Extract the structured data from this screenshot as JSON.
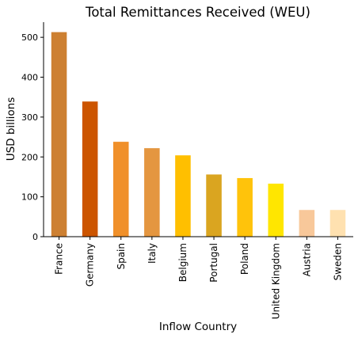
{
  "chart_data": {
    "type": "bar",
    "title": "Total Remittances Received (WEU)",
    "xlabel": "Inflow Country",
    "ylabel": "USD billions",
    "categories": [
      "France",
      "Germany",
      "Spain",
      "Italy",
      "Belgium",
      "Portugal",
      "Poland",
      "United Kingdom",
      "Austria",
      "Sweden"
    ],
    "values": [
      513,
      339,
      238,
      222,
      204,
      156,
      147,
      133,
      67,
      67
    ],
    "colors": [
      "#cd8032",
      "#cc5500",
      "#f0902a",
      "#e49640",
      "#ffbf00",
      "#daa520",
      "#ffc30b",
      "#ffe600",
      "#f8c89a",
      "#ffe1b0"
    ],
    "yticks": [
      0,
      100,
      200,
      300,
      400,
      500
    ],
    "ylim": [
      0,
      538
    ],
    "grid": false,
    "legend": "none"
  }
}
